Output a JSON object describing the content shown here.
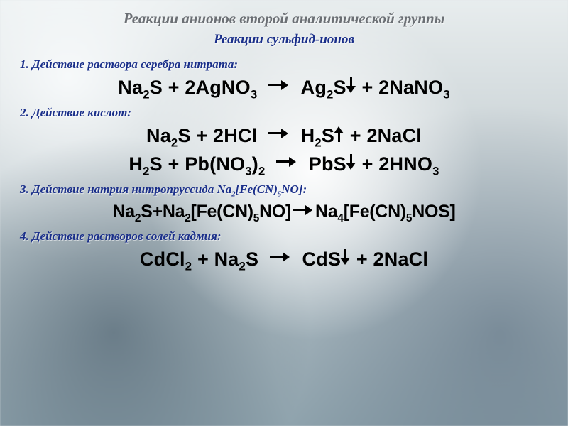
{
  "title_main": "Реакции анионов второй аналитической группы",
  "title_sub": "Реакции сульфид-ионов",
  "steps": {
    "s1": "1. Действие раствора серебра нитрата:",
    "s2": "2. Действие кислот:",
    "s3_a": "3. Действие натрия нитропруссида Na",
    "s3_b": "[Fe(CN)",
    "s3_c": "NO]:",
    "s4": "4. Действие растворов солей кадмия:"
  },
  "letters": {
    "Na": "Na",
    "S": "S",
    "Ag": "Ag",
    "NO": "NO",
    "N": "N",
    "O": "O",
    "H": "H",
    "Cl": "Cl",
    "Pb": "Pb",
    "Fe": "Fe",
    "CN": "CN",
    "NOS": "NOS",
    "Cd": "Cd",
    "C": "C",
    "CdCl": "CdCl",
    "NaCl": "NaCl",
    "HCl": "HCl",
    "PbS": "PbS",
    "HNO": "HNO",
    "AgNO": "AgNO",
    "NaNO": "NaNO",
    "CdS": "CdS",
    "plus": " + ",
    "two": "2",
    "three": "3",
    "four": "4",
    "five": "5",
    "lbr": "[",
    "rbr": "]"
  }
}
